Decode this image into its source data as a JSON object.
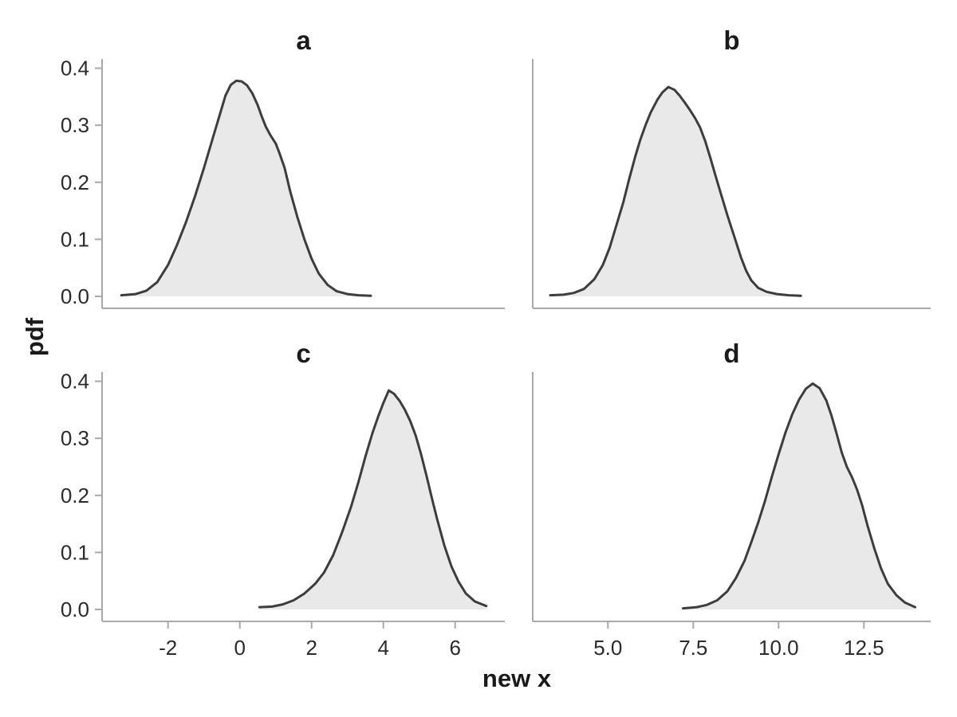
{
  "figure_title": "",
  "chart_data": {
    "type": "area",
    "subtype": "kde-density-small-multiples",
    "grid": "2x2",
    "xlabel": "new x",
    "ylabel": "pdf",
    "ylim": [
      -0.02,
      0.4153
    ],
    "gridlines": false,
    "legend": "none",
    "y_ticks": {
      "values": [
        0,
        0.1,
        0.2,
        0.3,
        0.4
      ],
      "labels": [
        "0.0",
        "0.1",
        "0.2",
        "0.3",
        "0.4"
      ]
    },
    "columns": [
      {
        "xlim": [
          -3.84,
          7.38
        ],
        "x_ticks": {
          "values": [
            -2,
            0,
            2,
            4,
            6
          ],
          "labels": [
            "-2",
            "0",
            "2",
            "4",
            "6"
          ]
        }
      },
      {
        "xlim": [
          2.78,
          14.45
        ],
        "x_ticks": {
          "values": [
            5,
            7.5,
            10,
            12.5
          ],
          "labels": [
            "5.0",
            "7.5",
            "10.0",
            "12.5"
          ]
        }
      }
    ],
    "panels": [
      {
        "title": "a",
        "row": 0,
        "col": 0,
        "peak": [
          -0.1,
          0.378
        ],
        "points": [
          [
            -3.3,
            0.002
          ],
          [
            -2.9,
            0.004
          ],
          [
            -2.6,
            0.01
          ],
          [
            -2.3,
            0.025
          ],
          [
            -2.0,
            0.055
          ],
          [
            -1.75,
            0.09
          ],
          [
            -1.5,
            0.13
          ],
          [
            -1.25,
            0.175
          ],
          [
            -1.0,
            0.225
          ],
          [
            -0.75,
            0.278
          ],
          [
            -0.55,
            0.32
          ],
          [
            -0.4,
            0.352
          ],
          [
            -0.25,
            0.371
          ],
          [
            -0.1,
            0.378
          ],
          [
            0.05,
            0.377
          ],
          [
            0.2,
            0.37
          ],
          [
            0.35,
            0.356
          ],
          [
            0.5,
            0.335
          ],
          [
            0.62,
            0.314
          ],
          [
            0.72,
            0.298
          ],
          [
            0.85,
            0.283
          ],
          [
            1.0,
            0.268
          ],
          [
            1.1,
            0.252
          ],
          [
            1.25,
            0.225
          ],
          [
            1.4,
            0.185
          ],
          [
            1.6,
            0.14
          ],
          [
            1.8,
            0.1
          ],
          [
            2.0,
            0.066
          ],
          [
            2.2,
            0.04
          ],
          [
            2.45,
            0.02
          ],
          [
            2.7,
            0.009
          ],
          [
            3.0,
            0.004
          ],
          [
            3.3,
            0.002
          ],
          [
            3.65,
            0.001
          ]
        ]
      },
      {
        "title": "b",
        "row": 0,
        "col": 1,
        "peak": [
          6.77,
          0.367
        ],
        "points": [
          [
            3.31,
            0.002
          ],
          [
            3.7,
            0.003
          ],
          [
            4.0,
            0.006
          ],
          [
            4.3,
            0.013
          ],
          [
            4.6,
            0.03
          ],
          [
            4.85,
            0.055
          ],
          [
            5.05,
            0.085
          ],
          [
            5.25,
            0.125
          ],
          [
            5.45,
            0.165
          ],
          [
            5.62,
            0.205
          ],
          [
            5.8,
            0.245
          ],
          [
            5.95,
            0.275
          ],
          [
            6.1,
            0.3
          ],
          [
            6.25,
            0.322
          ],
          [
            6.45,
            0.345
          ],
          [
            6.6,
            0.358
          ],
          [
            6.77,
            0.367
          ],
          [
            6.95,
            0.362
          ],
          [
            7.1,
            0.352
          ],
          [
            7.25,
            0.34
          ],
          [
            7.4,
            0.327
          ],
          [
            7.55,
            0.313
          ],
          [
            7.7,
            0.296
          ],
          [
            7.85,
            0.272
          ],
          [
            8.0,
            0.243
          ],
          [
            8.15,
            0.212
          ],
          [
            8.3,
            0.182
          ],
          [
            8.5,
            0.142
          ],
          [
            8.7,
            0.105
          ],
          [
            8.9,
            0.068
          ],
          [
            9.05,
            0.045
          ],
          [
            9.2,
            0.028
          ],
          [
            9.4,
            0.015
          ],
          [
            9.65,
            0.008
          ],
          [
            9.95,
            0.004
          ],
          [
            10.3,
            0.002
          ],
          [
            10.65,
            0.001
          ]
        ]
      },
      {
        "title": "c",
        "row": 1,
        "col": 0,
        "peak": [
          4.15,
          0.385
        ],
        "points": [
          [
            0.55,
            0.004
          ],
          [
            0.9,
            0.005
          ],
          [
            1.2,
            0.009
          ],
          [
            1.5,
            0.016
          ],
          [
            1.8,
            0.028
          ],
          [
            2.1,
            0.045
          ],
          [
            2.35,
            0.065
          ],
          [
            2.6,
            0.095
          ],
          [
            2.85,
            0.135
          ],
          [
            3.1,
            0.18
          ],
          [
            3.3,
            0.222
          ],
          [
            3.5,
            0.268
          ],
          [
            3.7,
            0.31
          ],
          [
            3.85,
            0.337
          ],
          [
            4.0,
            0.362
          ],
          [
            4.15,
            0.384
          ],
          [
            4.3,
            0.378
          ],
          [
            4.45,
            0.366
          ],
          [
            4.6,
            0.35
          ],
          [
            4.75,
            0.33
          ],
          [
            4.9,
            0.305
          ],
          [
            5.05,
            0.272
          ],
          [
            5.2,
            0.235
          ],
          [
            5.35,
            0.196
          ],
          [
            5.5,
            0.158
          ],
          [
            5.7,
            0.112
          ],
          [
            5.9,
            0.075
          ],
          [
            6.1,
            0.048
          ],
          [
            6.3,
            0.028
          ],
          [
            6.55,
            0.014
          ],
          [
            6.87,
            0.006
          ]
        ]
      },
      {
        "title": "d",
        "row": 1,
        "col": 1,
        "peak": [
          11.0,
          0.396
        ],
        "points": [
          [
            7.2,
            0.002
          ],
          [
            7.6,
            0.004
          ],
          [
            7.9,
            0.008
          ],
          [
            8.2,
            0.016
          ],
          [
            8.5,
            0.032
          ],
          [
            8.75,
            0.055
          ],
          [
            9.0,
            0.085
          ],
          [
            9.2,
            0.118
          ],
          [
            9.4,
            0.152
          ],
          [
            9.6,
            0.19
          ],
          [
            9.8,
            0.232
          ],
          [
            10.0,
            0.272
          ],
          [
            10.2,
            0.31
          ],
          [
            10.4,
            0.342
          ],
          [
            10.6,
            0.368
          ],
          [
            10.8,
            0.387
          ],
          [
            11.0,
            0.396
          ],
          [
            11.2,
            0.388
          ],
          [
            11.4,
            0.366
          ],
          [
            11.55,
            0.34
          ],
          [
            11.7,
            0.308
          ],
          [
            11.85,
            0.275
          ],
          [
            12.0,
            0.25
          ],
          [
            12.15,
            0.232
          ],
          [
            12.3,
            0.21
          ],
          [
            12.45,
            0.182
          ],
          [
            12.6,
            0.148
          ],
          [
            12.8,
            0.108
          ],
          [
            13.0,
            0.072
          ],
          [
            13.2,
            0.045
          ],
          [
            13.45,
            0.025
          ],
          [
            13.7,
            0.012
          ],
          [
            14.0,
            0.004
          ]
        ]
      }
    ],
    "colors": {
      "line": "#3d3d3d",
      "fill": "#e9e9e9",
      "spine": "#a9a9a9",
      "tick_text": "#2b2b2b",
      "label_text": "#1a1a1a",
      "background": "#ffffff"
    }
  }
}
